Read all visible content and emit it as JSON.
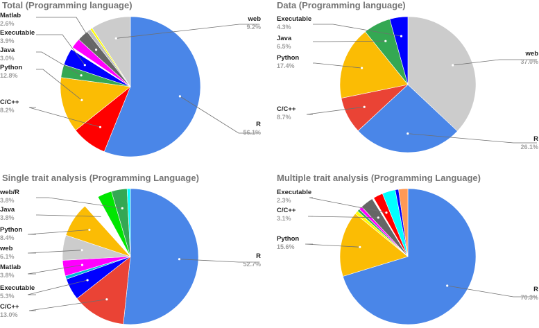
{
  "chart_data": [
    {
      "type": "pie",
      "title": "Total (Programming language)",
      "series": [
        {
          "name": "R",
          "value": 56.1,
          "label": "56.1%",
          "color": "#4a86e8"
        },
        {
          "name": "C/C++",
          "value": 8.2,
          "label": "8.2%",
          "color": "#ff0000"
        },
        {
          "name": "Python",
          "value": 12.8,
          "label": "12.8%",
          "color": "#fbbc04"
        },
        {
          "name": "Java",
          "value": 3.0,
          "label": "3.0%",
          "color": "#34a853"
        },
        {
          "name": "Executable",
          "value": 3.9,
          "label": "3.9%",
          "color": "#0000ff"
        },
        {
          "name": "",
          "value": 0.5,
          "label": "",
          "color": "#ffffff"
        },
        {
          "name": "",
          "value": 2.3,
          "label": "",
          "color": "#ff00ff"
        },
        {
          "name": "Matlab",
          "value": 2.6,
          "label": "2.6%",
          "color": "#666666"
        },
        {
          "name": "",
          "value": 0.9,
          "label": "",
          "color": "#bdbdbd"
        },
        {
          "name": "",
          "value": 0.5,
          "label": "",
          "color": "#ffff00"
        },
        {
          "name": "web",
          "value": 9.2,
          "label": "9.2%",
          "color": "#cccccc"
        }
      ]
    },
    {
      "type": "pie",
      "title": "Data (Programming language)",
      "series": [
        {
          "name": "web",
          "value": 37.0,
          "label": "37.0%",
          "color": "#cccccc"
        },
        {
          "name": "R",
          "value": 26.1,
          "label": "26.1%",
          "color": "#4a86e8"
        },
        {
          "name": "C/C++",
          "value": 8.7,
          "label": "8.7%",
          "color": "#ea4335"
        },
        {
          "name": "Python",
          "value": 17.4,
          "label": "17.4%",
          "color": "#fbbc04"
        },
        {
          "name": "Java",
          "value": 6.5,
          "label": "6.5%",
          "color": "#34a853"
        },
        {
          "name": "Executable",
          "value": 4.3,
          "label": "4.3%",
          "color": "#0000ff"
        }
      ]
    },
    {
      "type": "pie",
      "title": "Single trait analysis (Programming Language)",
      "series": [
        {
          "name": "R",
          "value": 52.7,
          "label": "52.7%",
          "color": "#4a86e8"
        },
        {
          "name": "C/C++",
          "value": 13.0,
          "label": "13.0%",
          "color": "#ea4335"
        },
        {
          "name": "Executable",
          "value": 5.3,
          "label": "5.3%",
          "color": "#0000ff"
        },
        {
          "name": "",
          "value": 0.8,
          "label": "",
          "color": "#00bcd4"
        },
        {
          "name": "Matlab",
          "value": 3.8,
          "label": "3.8%",
          "color": "#ff00ff"
        },
        {
          "name": "web",
          "value": 6.1,
          "label": "6.1%",
          "color": "#cccccc"
        },
        {
          "name": "Python",
          "value": 8.4,
          "label": "8.4%",
          "color": "#fbbc04"
        },
        {
          "name": "Java",
          "value": 3.8,
          "label": "3.8%",
          "color": "#ffffff"
        },
        {
          "name": "",
          "value": 3.5,
          "label": "",
          "color": "#00e600"
        },
        {
          "name": "web/R",
          "value": 3.8,
          "label": "3.8%",
          "color": "#34a853"
        },
        {
          "name": "",
          "value": 0.8,
          "label": "",
          "color": "#00ffff"
        }
      ]
    },
    {
      "type": "pie",
      "title": "Multiple trait analysis (Programming Language)",
      "series": [
        {
          "name": "R",
          "value": 70.3,
          "label": "70.3%",
          "color": "#4a86e8"
        },
        {
          "name": "Python",
          "value": 15.6,
          "label": "15.6%",
          "color": "#fbbc04"
        },
        {
          "name": "",
          "value": 0.8,
          "label": "",
          "color": "#ffff00"
        },
        {
          "name": "",
          "value": 0.6,
          "label": "",
          "color": "#34a853"
        },
        {
          "name": "",
          "value": 0.8,
          "label": "",
          "color": "#ff00ff"
        },
        {
          "name": "C/C++",
          "value": 3.1,
          "label": "3.1%",
          "color": "#666666"
        },
        {
          "name": "",
          "value": 0.4,
          "label": "",
          "color": "#ffffff"
        },
        {
          "name": "Executable",
          "value": 2.3,
          "label": "2.3%",
          "color": "#ff0000"
        },
        {
          "name": "",
          "value": 3.1,
          "label": "",
          "color": "#00ffff"
        },
        {
          "name": "",
          "value": 0.8,
          "label": "",
          "color": "#0000ff"
        },
        {
          "name": "",
          "value": 2.2,
          "label": "",
          "color": "#ff9955"
        }
      ]
    }
  ]
}
